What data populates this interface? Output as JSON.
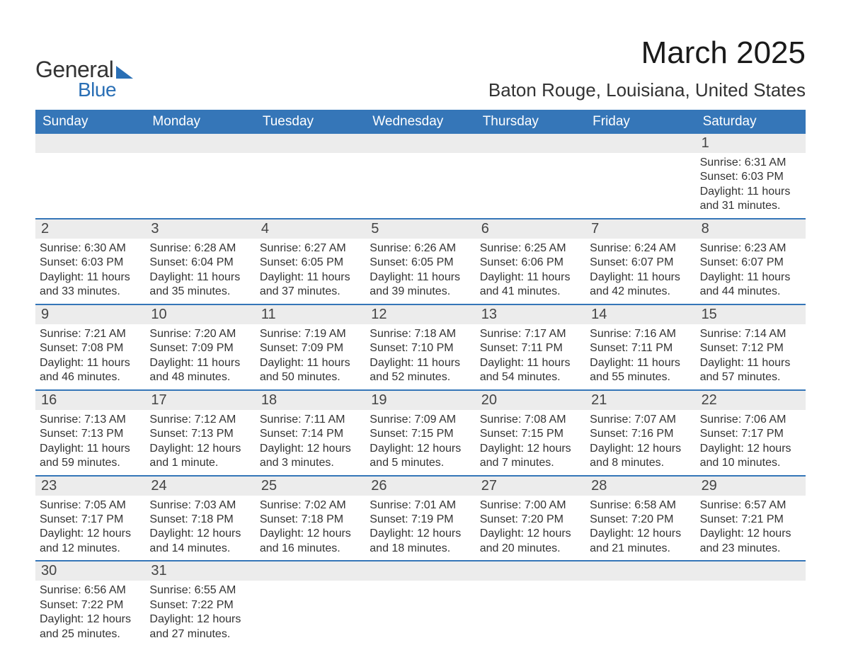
{
  "brand": {
    "text1": "General",
    "text2": "Blue",
    "accent_color": "#2a6fb5"
  },
  "title": "March 2025",
  "location": "Baton Rouge, Louisiana, United States",
  "colors": {
    "header_bg": "#3576b8",
    "header_text": "#ffffff",
    "daynum_bg": "#ececec",
    "body_text": "#333333",
    "row_divider": "#3576b8",
    "background": "#ffffff"
  },
  "fonts": {
    "title_size_pt": 33,
    "location_size_pt": 20,
    "dow_size_pt": 14,
    "daynum_size_pt": 15,
    "body_size_pt": 12
  },
  "days_of_week": [
    "Sunday",
    "Monday",
    "Tuesday",
    "Wednesday",
    "Thursday",
    "Friday",
    "Saturday"
  ],
  "weeks": [
    [
      null,
      null,
      null,
      null,
      null,
      null,
      {
        "n": "1",
        "sunrise": "Sunrise: 6:31 AM",
        "sunset": "Sunset: 6:03 PM",
        "day1": "Daylight: 11 hours",
        "day2": "and 31 minutes."
      }
    ],
    [
      {
        "n": "2",
        "sunrise": "Sunrise: 6:30 AM",
        "sunset": "Sunset: 6:03 PM",
        "day1": "Daylight: 11 hours",
        "day2": "and 33 minutes."
      },
      {
        "n": "3",
        "sunrise": "Sunrise: 6:28 AM",
        "sunset": "Sunset: 6:04 PM",
        "day1": "Daylight: 11 hours",
        "day2": "and 35 minutes."
      },
      {
        "n": "4",
        "sunrise": "Sunrise: 6:27 AM",
        "sunset": "Sunset: 6:05 PM",
        "day1": "Daylight: 11 hours",
        "day2": "and 37 minutes."
      },
      {
        "n": "5",
        "sunrise": "Sunrise: 6:26 AM",
        "sunset": "Sunset: 6:05 PM",
        "day1": "Daylight: 11 hours",
        "day2": "and 39 minutes."
      },
      {
        "n": "6",
        "sunrise": "Sunrise: 6:25 AM",
        "sunset": "Sunset: 6:06 PM",
        "day1": "Daylight: 11 hours",
        "day2": "and 41 minutes."
      },
      {
        "n": "7",
        "sunrise": "Sunrise: 6:24 AM",
        "sunset": "Sunset: 6:07 PM",
        "day1": "Daylight: 11 hours",
        "day2": "and 42 minutes."
      },
      {
        "n": "8",
        "sunrise": "Sunrise: 6:23 AM",
        "sunset": "Sunset: 6:07 PM",
        "day1": "Daylight: 11 hours",
        "day2": "and 44 minutes."
      }
    ],
    [
      {
        "n": "9",
        "sunrise": "Sunrise: 7:21 AM",
        "sunset": "Sunset: 7:08 PM",
        "day1": "Daylight: 11 hours",
        "day2": "and 46 minutes."
      },
      {
        "n": "10",
        "sunrise": "Sunrise: 7:20 AM",
        "sunset": "Sunset: 7:09 PM",
        "day1": "Daylight: 11 hours",
        "day2": "and 48 minutes."
      },
      {
        "n": "11",
        "sunrise": "Sunrise: 7:19 AM",
        "sunset": "Sunset: 7:09 PM",
        "day1": "Daylight: 11 hours",
        "day2": "and 50 minutes."
      },
      {
        "n": "12",
        "sunrise": "Sunrise: 7:18 AM",
        "sunset": "Sunset: 7:10 PM",
        "day1": "Daylight: 11 hours",
        "day2": "and 52 minutes."
      },
      {
        "n": "13",
        "sunrise": "Sunrise: 7:17 AM",
        "sunset": "Sunset: 7:11 PM",
        "day1": "Daylight: 11 hours",
        "day2": "and 54 minutes."
      },
      {
        "n": "14",
        "sunrise": "Sunrise: 7:16 AM",
        "sunset": "Sunset: 7:11 PM",
        "day1": "Daylight: 11 hours",
        "day2": "and 55 minutes."
      },
      {
        "n": "15",
        "sunrise": "Sunrise: 7:14 AM",
        "sunset": "Sunset: 7:12 PM",
        "day1": "Daylight: 11 hours",
        "day2": "and 57 minutes."
      }
    ],
    [
      {
        "n": "16",
        "sunrise": "Sunrise: 7:13 AM",
        "sunset": "Sunset: 7:13 PM",
        "day1": "Daylight: 11 hours",
        "day2": "and 59 minutes."
      },
      {
        "n": "17",
        "sunrise": "Sunrise: 7:12 AM",
        "sunset": "Sunset: 7:13 PM",
        "day1": "Daylight: 12 hours",
        "day2": "and 1 minute."
      },
      {
        "n": "18",
        "sunrise": "Sunrise: 7:11 AM",
        "sunset": "Sunset: 7:14 PM",
        "day1": "Daylight: 12 hours",
        "day2": "and 3 minutes."
      },
      {
        "n": "19",
        "sunrise": "Sunrise: 7:09 AM",
        "sunset": "Sunset: 7:15 PM",
        "day1": "Daylight: 12 hours",
        "day2": "and 5 minutes."
      },
      {
        "n": "20",
        "sunrise": "Sunrise: 7:08 AM",
        "sunset": "Sunset: 7:15 PM",
        "day1": "Daylight: 12 hours",
        "day2": "and 7 minutes."
      },
      {
        "n": "21",
        "sunrise": "Sunrise: 7:07 AM",
        "sunset": "Sunset: 7:16 PM",
        "day1": "Daylight: 12 hours",
        "day2": "and 8 minutes."
      },
      {
        "n": "22",
        "sunrise": "Sunrise: 7:06 AM",
        "sunset": "Sunset: 7:17 PM",
        "day1": "Daylight: 12 hours",
        "day2": "and 10 minutes."
      }
    ],
    [
      {
        "n": "23",
        "sunrise": "Sunrise: 7:05 AM",
        "sunset": "Sunset: 7:17 PM",
        "day1": "Daylight: 12 hours",
        "day2": "and 12 minutes."
      },
      {
        "n": "24",
        "sunrise": "Sunrise: 7:03 AM",
        "sunset": "Sunset: 7:18 PM",
        "day1": "Daylight: 12 hours",
        "day2": "and 14 minutes."
      },
      {
        "n": "25",
        "sunrise": "Sunrise: 7:02 AM",
        "sunset": "Sunset: 7:18 PM",
        "day1": "Daylight: 12 hours",
        "day2": "and 16 minutes."
      },
      {
        "n": "26",
        "sunrise": "Sunrise: 7:01 AM",
        "sunset": "Sunset: 7:19 PM",
        "day1": "Daylight: 12 hours",
        "day2": "and 18 minutes."
      },
      {
        "n": "27",
        "sunrise": "Sunrise: 7:00 AM",
        "sunset": "Sunset: 7:20 PM",
        "day1": "Daylight: 12 hours",
        "day2": "and 20 minutes."
      },
      {
        "n": "28",
        "sunrise": "Sunrise: 6:58 AM",
        "sunset": "Sunset: 7:20 PM",
        "day1": "Daylight: 12 hours",
        "day2": "and 21 minutes."
      },
      {
        "n": "29",
        "sunrise": "Sunrise: 6:57 AM",
        "sunset": "Sunset: 7:21 PM",
        "day1": "Daylight: 12 hours",
        "day2": "and 23 minutes."
      }
    ],
    [
      {
        "n": "30",
        "sunrise": "Sunrise: 6:56 AM",
        "sunset": "Sunset: 7:22 PM",
        "day1": "Daylight: 12 hours",
        "day2": "and 25 minutes."
      },
      {
        "n": "31",
        "sunrise": "Sunrise: 6:55 AM",
        "sunset": "Sunset: 7:22 PM",
        "day1": "Daylight: 12 hours",
        "day2": "and 27 minutes."
      },
      null,
      null,
      null,
      null,
      null
    ]
  ]
}
